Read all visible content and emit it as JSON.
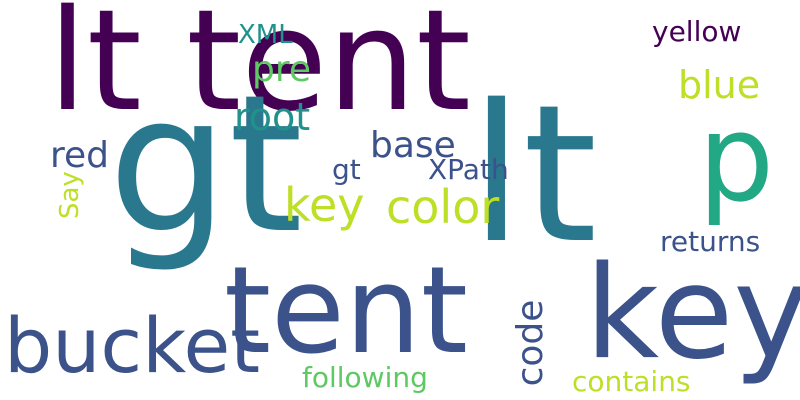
{
  "words": [
    {
      "text": "lt tent",
      "color": "#440154"
    },
    {
      "text": "gt",
      "color": "#2a788e"
    },
    {
      "text": "lt",
      "color": "#2a788e"
    },
    {
      "text": "p",
      "color": "#22a884"
    },
    {
      "text": "tent",
      "color": "#3b528b"
    },
    {
      "text": "key",
      "color": "#3b528b"
    },
    {
      "text": "bucket",
      "color": "#3b528b"
    },
    {
      "text": "XML",
      "color": "#21918c"
    },
    {
      "text": "yellow",
      "color": "#440154"
    },
    {
      "text": "pre",
      "color": "#5ec962"
    },
    {
      "text": "blue",
      "color": "#bddf26"
    },
    {
      "text": "root",
      "color": "#21918c"
    },
    {
      "text": "base",
      "color": "#3b528b"
    },
    {
      "text": "red",
      "color": "#3b528b"
    },
    {
      "text": "gt",
      "color": "#3b528b"
    },
    {
      "text": "XPath",
      "color": "#3b528b"
    },
    {
      "text": "key",
      "color": "#bddf26"
    },
    {
      "text": "color",
      "color": "#bddf26"
    },
    {
      "text": "Say",
      "color": "#bddf26"
    },
    {
      "text": "returns",
      "color": "#3b528b"
    },
    {
      "text": "code",
      "color": "#3b528b"
    },
    {
      "text": "following",
      "color": "#5ec962"
    },
    {
      "text": "contains",
      "color": "#bddf26"
    }
  ]
}
